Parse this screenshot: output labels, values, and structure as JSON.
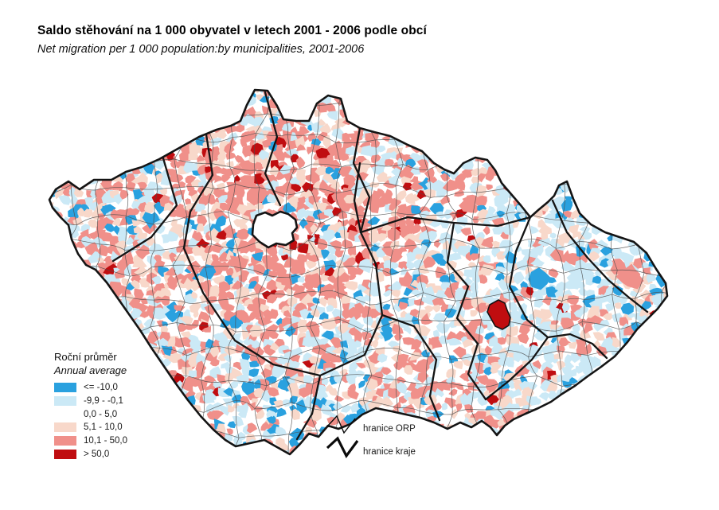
{
  "title": "Saldo stěhování na 1 000 obyvatel v letech 2001 - 2006 podle obcí",
  "subtitle": "Net migration per 1 000 population:by municipalities, 2001-2006",
  "legend": {
    "title_cs": "Roční průměr",
    "title_en": "Annual average",
    "classes": [
      {
        "label": "<= -10,0",
        "color": "#2AA1DF"
      },
      {
        "label": "-9,9 - -0,1",
        "color": "#CBE9F6"
      },
      {
        "label": "0,0 - 5,0",
        "color": "#FFFFFF"
      },
      {
        "label": "5,1 - 10,0",
        "color": "#F8D8CA"
      },
      {
        "label": "10,1 - 50,0",
        "color": "#F0908A"
      },
      {
        "label": "> 50,0",
        "color": "#C00D10"
      }
    ],
    "lines": [
      {
        "label": "hranice ORP",
        "style": "thin"
      },
      {
        "label": "hranice kraje",
        "style": "thick"
      }
    ]
  },
  "map": {
    "region": "Czech Republic (obce / municipalities choropleth)",
    "border_color": "#141414",
    "orp_line_color": "#4c4c4c"
  }
}
